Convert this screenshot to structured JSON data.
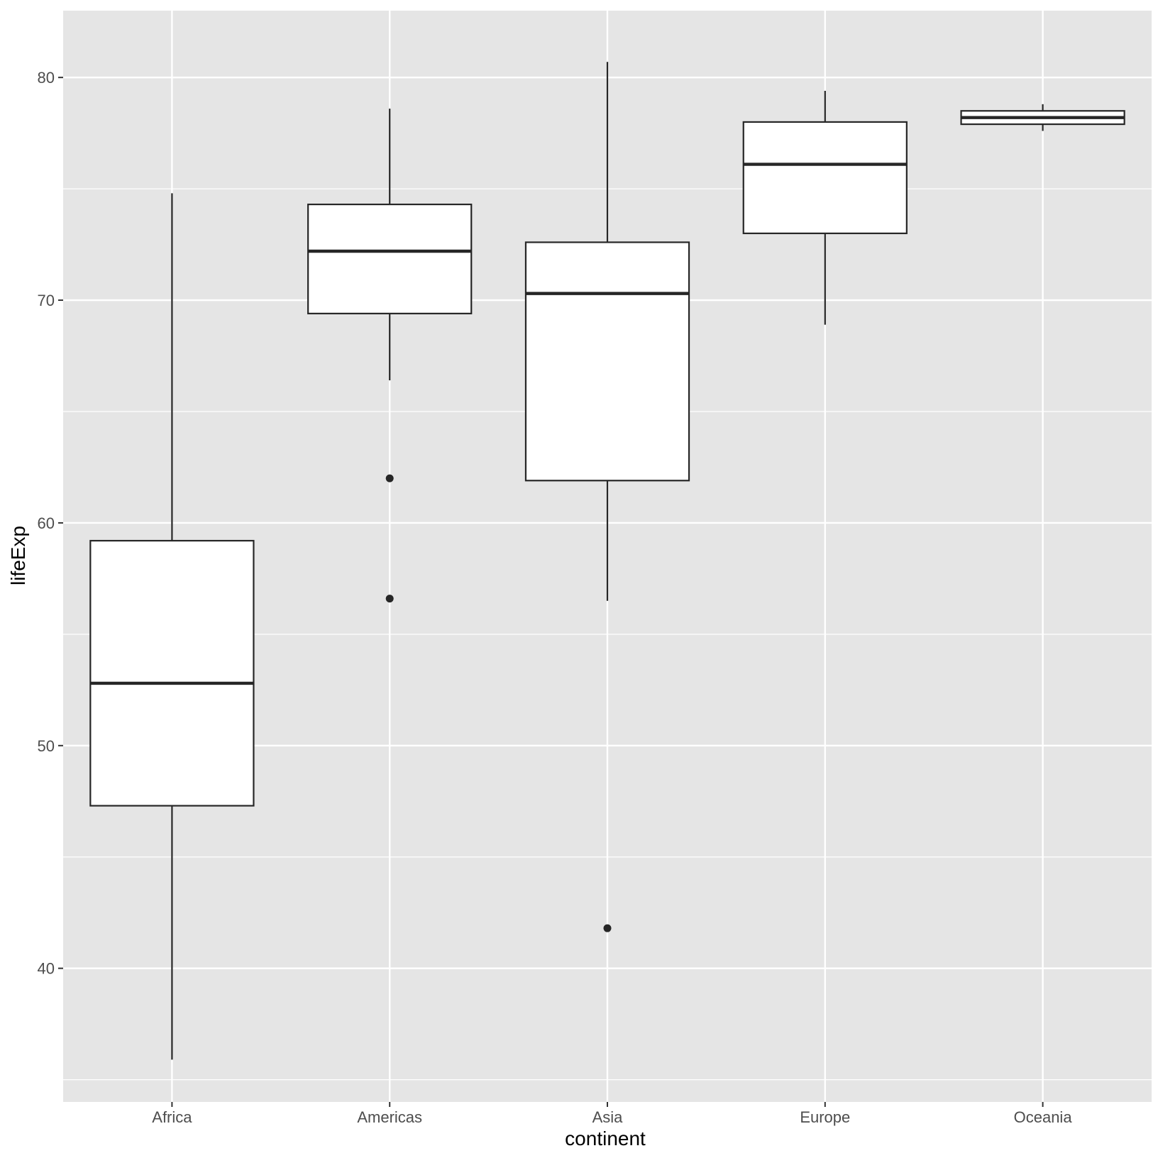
{
  "chart_data": {
    "type": "boxplot",
    "title": "",
    "xlabel": "continent",
    "ylabel": "lifeExp",
    "categories": [
      "Africa",
      "Americas",
      "Asia",
      "Europe",
      "Oceania"
    ],
    "ylim": [
      34.0,
      83.0
    ],
    "yticks": [
      40,
      50,
      60,
      70,
      80
    ],
    "y_minor_ticks": [
      35,
      45,
      55,
      65,
      75
    ],
    "grid": true,
    "legend": "none",
    "colors": {
      "panel_bg": "#e5e5e5",
      "grid": "#ffffff",
      "box_fill": "#ffffff",
      "box_stroke": "#262626",
      "tick_text": "#4d4d4d",
      "axis_title": "#000000"
    },
    "boxes": [
      {
        "category": "Africa",
        "min": 35.9,
        "q1": 47.3,
        "median": 52.8,
        "q3": 59.2,
        "max": 74.8,
        "outliers": []
      },
      {
        "category": "Americas",
        "min": 66.4,
        "q1": 69.4,
        "median": 72.2,
        "q3": 74.3,
        "max": 78.6,
        "outliers": [
          62.0,
          56.6
        ]
      },
      {
        "category": "Asia",
        "min": 56.5,
        "q1": 61.9,
        "median": 70.3,
        "q3": 72.6,
        "max": 80.7,
        "outliers": [
          41.8
        ]
      },
      {
        "category": "Europe",
        "min": 68.9,
        "q1": 73.0,
        "median": 76.1,
        "q3": 78.0,
        "max": 79.4,
        "outliers": []
      },
      {
        "category": "Oceania",
        "min": 77.6,
        "q1": 77.9,
        "median": 78.2,
        "q3": 78.5,
        "max": 78.8,
        "outliers": []
      }
    ]
  }
}
